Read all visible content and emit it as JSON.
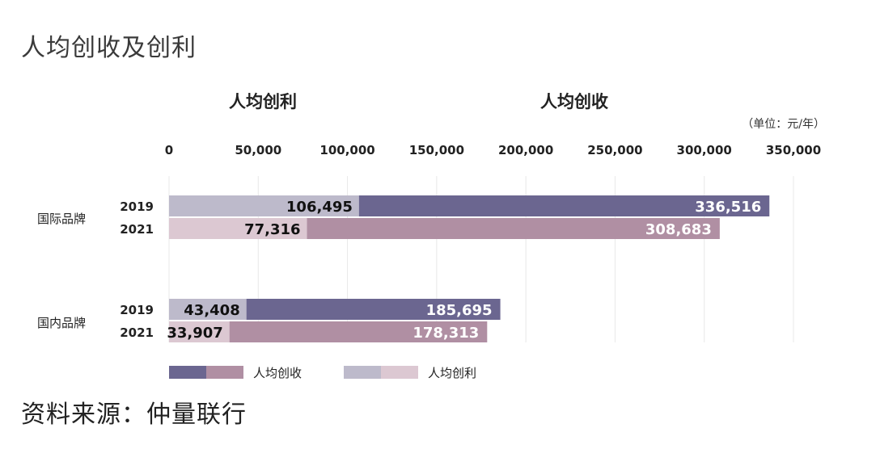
{
  "title": "人均创收及创利",
  "source": "资料来源：仲量联行",
  "chart_data": {
    "type": "bar",
    "orientation": "horizontal",
    "overlay": true,
    "section_labels": [
      "人均创利",
      "人均创收"
    ],
    "unit": "（单位：元/年）",
    "xlim": [
      0,
      350000
    ],
    "x_ticks": [
      0,
      50000,
      100000,
      150000,
      200000,
      250000,
      300000,
      350000
    ],
    "x_tick_labels": [
      "0",
      "50,000",
      "100,000",
      "150,000",
      "200,000",
      "250,000",
      "300,000",
      "350,000"
    ],
    "grid": true,
    "groups": [
      {
        "name": "国际品牌",
        "rows": [
          {
            "year": "2019",
            "revenue": 336516,
            "revenue_label": "336,516",
            "profit": 106495,
            "profit_label": "106,495"
          },
          {
            "year": "2021",
            "revenue": 308683,
            "revenue_label": "308,683",
            "profit": 77316,
            "profit_label": "77,316"
          }
        ]
      },
      {
        "name": "国内品牌",
        "rows": [
          {
            "year": "2019",
            "revenue": 185695,
            "revenue_label": "185,695",
            "profit": 43408,
            "profit_label": "43,408"
          },
          {
            "year": "2021",
            "revenue": 178313,
            "revenue_label": "178,313",
            "profit": 33907,
            "profit_label": "33,907"
          }
        ]
      }
    ],
    "legend": [
      {
        "name": "人均创收",
        "colors": [
          "#6b6690",
          "#b08fa3"
        ]
      },
      {
        "name": "人均创利",
        "colors": [
          "#bdbacb",
          "#dcc8d2"
        ]
      }
    ],
    "legend_position": "bottom",
    "colors": {
      "revenue_2019": "#6b6690",
      "revenue_2021": "#b08fa3",
      "profit_2019": "#bdbacb",
      "profit_2021": "#dcc8d2",
      "grid": "#e8e8e8"
    }
  }
}
